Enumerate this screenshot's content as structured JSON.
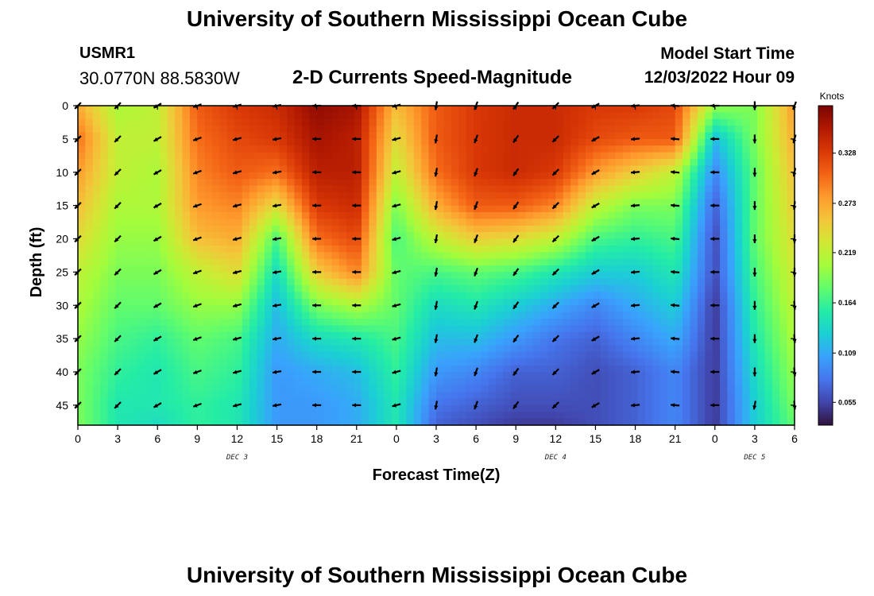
{
  "header": {
    "title": "University of Southern Mississippi Ocean Cube",
    "station_id": "USMR1",
    "station_coords": "30.0770N  88.5830W",
    "chart_title": "2-D Currents Speed-Magnitude",
    "model_start_label": "Model Start Time",
    "model_start_value": "12/03/2022 Hour 09"
  },
  "footer": {
    "title": "University of Southern Mississippi Ocean Cube"
  },
  "chart_data": {
    "type": "heatmap",
    "title": "2-D Currents Speed-Magnitude",
    "xlabel": "Forecast Time(Z)",
    "ylabel": "Depth (ft)",
    "xlim": [
      0,
      54
    ],
    "ylim": [
      48,
      0
    ],
    "x_ticks": [
      0,
      3,
      6,
      9,
      12,
      15,
      18,
      21,
      24,
      27,
      30,
      33,
      36,
      39,
      42,
      45,
      48,
      51,
      54
    ],
    "x_tick_labels": [
      "0",
      "3",
      "6",
      "9",
      "12",
      "15",
      "18",
      "21",
      "0",
      "3",
      "6",
      "9",
      "12",
      "15",
      "18",
      "21",
      "0",
      "3",
      "6"
    ],
    "y_ticks": [
      0,
      5,
      10,
      15,
      20,
      25,
      30,
      35,
      40,
      45
    ],
    "y_tick_labels": [
      "0",
      "5",
      "10",
      "15",
      "20",
      "25",
      "30",
      "35",
      "40",
      "45"
    ],
    "day_labels": [
      {
        "x": 12,
        "label": "DEC 3"
      },
      {
        "x": 36,
        "label": "DEC 4"
      },
      {
        "x": 51,
        "label": "DEC 5"
      }
    ],
    "colorbar": {
      "unit": "Knots",
      "min": 0.03,
      "max": 0.38,
      "ticks": [
        0.328,
        0.273,
        0.219,
        0.164,
        0.109,
        0.055
      ],
      "tick_labels": [
        "0.328",
        "0.273",
        "0.219",
        "0.164",
        "0.109",
        "0.055"
      ],
      "colors": [
        "#30123b",
        "#4145ab",
        "#4675ed",
        "#39a2fc",
        "#1bcfd4",
        "#24eca6",
        "#61fc6c",
        "#a4fc3b",
        "#d1e834",
        "#f3c63a",
        "#fe9b2d",
        "#f36315",
        "#d93806",
        "#b11901",
        "#7a0403"
      ]
    },
    "grid_x": [
      0,
      3,
      6,
      9,
      12,
      15,
      18,
      21,
      24,
      27,
      30,
      33,
      36,
      39,
      42,
      45,
      48,
      51,
      54
    ],
    "grid_depth": [
      0,
      5,
      10,
      15,
      20,
      25,
      30,
      35,
      40,
      45,
      48
    ],
    "speed_knots": [
      [
        0.27,
        0.3,
        0.28,
        0.26,
        0.24,
        0.22,
        0.21,
        0.2,
        0.19,
        0.19,
        0.19
      ],
      [
        0.21,
        0.22,
        0.22,
        0.21,
        0.2,
        0.19,
        0.18,
        0.17,
        0.16,
        0.15,
        0.15
      ],
      [
        0.22,
        0.22,
        0.21,
        0.21,
        0.2,
        0.19,
        0.18,
        0.16,
        0.15,
        0.15,
        0.14
      ],
      [
        0.31,
        0.3,
        0.29,
        0.28,
        0.26,
        0.22,
        0.2,
        0.18,
        0.17,
        0.16,
        0.16
      ],
      [
        0.33,
        0.32,
        0.31,
        0.29,
        0.27,
        0.24,
        0.2,
        0.17,
        0.16,
        0.15,
        0.15
      ],
      [
        0.34,
        0.33,
        0.3,
        0.24,
        0.17,
        0.14,
        0.12,
        0.11,
        0.1,
        0.1,
        0.1
      ],
      [
        0.37,
        0.36,
        0.35,
        0.33,
        0.3,
        0.25,
        0.19,
        0.14,
        0.11,
        0.1,
        0.1
      ],
      [
        0.36,
        0.35,
        0.35,
        0.34,
        0.32,
        0.29,
        0.21,
        0.15,
        0.12,
        0.11,
        0.11
      ],
      [
        0.26,
        0.24,
        0.22,
        0.19,
        0.17,
        0.18,
        0.18,
        0.17,
        0.16,
        0.15,
        0.15
      ],
      [
        0.31,
        0.31,
        0.3,
        0.27,
        0.22,
        0.17,
        0.14,
        0.12,
        0.1,
        0.08,
        0.07
      ],
      [
        0.33,
        0.33,
        0.33,
        0.31,
        0.25,
        0.18,
        0.15,
        0.12,
        0.09,
        0.07,
        0.06
      ],
      [
        0.34,
        0.34,
        0.34,
        0.31,
        0.24,
        0.17,
        0.13,
        0.1,
        0.07,
        0.06,
        0.05
      ],
      [
        0.34,
        0.34,
        0.33,
        0.29,
        0.22,
        0.15,
        0.11,
        0.08,
        0.07,
        0.06,
        0.05
      ],
      [
        0.33,
        0.32,
        0.28,
        0.22,
        0.17,
        0.13,
        0.09,
        0.07,
        0.06,
        0.06,
        0.06
      ],
      [
        0.33,
        0.31,
        0.25,
        0.19,
        0.16,
        0.13,
        0.11,
        0.09,
        0.07,
        0.07,
        0.07
      ],
      [
        0.32,
        0.31,
        0.22,
        0.19,
        0.17,
        0.15,
        0.13,
        0.11,
        0.09,
        0.09,
        0.09
      ],
      [
        0.2,
        0.12,
        0.09,
        0.07,
        0.06,
        0.06,
        0.05,
        0.05,
        0.05,
        0.05,
        0.05
      ],
      [
        0.19,
        0.19,
        0.18,
        0.18,
        0.18,
        0.17,
        0.16,
        0.15,
        0.14,
        0.13,
        0.13
      ],
      [
        0.28,
        0.27,
        0.26,
        0.25,
        0.24,
        0.23,
        0.22,
        0.21,
        0.2,
        0.19,
        0.18
      ]
    ],
    "current_direction_deg": [
      [
        225,
        225,
        225,
        225,
        225,
        225,
        225,
        225,
        225,
        225
      ],
      [
        225,
        225,
        225,
        225,
        225,
        225,
        225,
        225,
        225,
        225
      ],
      [
        240,
        240,
        240,
        240,
        240,
        240,
        240,
        240,
        240,
        240
      ],
      [
        250,
        250,
        250,
        250,
        250,
        250,
        250,
        250,
        250,
        250
      ],
      [
        255,
        255,
        255,
        255,
        255,
        255,
        255,
        255,
        255,
        255
      ],
      [
        260,
        260,
        260,
        260,
        260,
        260,
        260,
        260,
        260,
        260
      ],
      [
        270,
        270,
        270,
        270,
        270,
        270,
        270,
        270,
        270,
        270
      ],
      [
        270,
        270,
        270,
        270,
        270,
        270,
        270,
        270,
        270,
        270
      ],
      [
        255,
        255,
        255,
        255,
        255,
        255,
        255,
        255,
        255,
        255
      ],
      [
        190,
        190,
        190,
        190,
        190,
        190,
        190,
        190,
        190,
        190
      ],
      [
        200,
        200,
        200,
        200,
        200,
        200,
        200,
        200,
        200,
        200
      ],
      [
        215,
        215,
        215,
        215,
        215,
        215,
        215,
        215,
        215,
        215
      ],
      [
        225,
        225,
        225,
        225,
        225,
        225,
        225,
        225,
        225,
        225
      ],
      [
        240,
        240,
        240,
        240,
        240,
        240,
        240,
        240,
        240,
        240
      ],
      [
        265,
        265,
        265,
        265,
        265,
        265,
        265,
        265,
        265,
        265
      ],
      [
        275,
        275,
        275,
        275,
        275,
        275,
        275,
        275,
        275,
        275
      ],
      [
        270,
        270,
        270,
        270,
        270,
        270,
        270,
        270,
        270,
        270
      ],
      [
        180,
        180,
        180,
        180,
        180,
        180,
        180,
        180,
        180,
        190
      ],
      [
        200,
        195,
        190,
        185,
        180,
        180,
        175,
        175,
        175,
        175
      ]
    ],
    "vector_depths": [
      0,
      5,
      10,
      15,
      20,
      25,
      30,
      35,
      40,
      45
    ]
  }
}
